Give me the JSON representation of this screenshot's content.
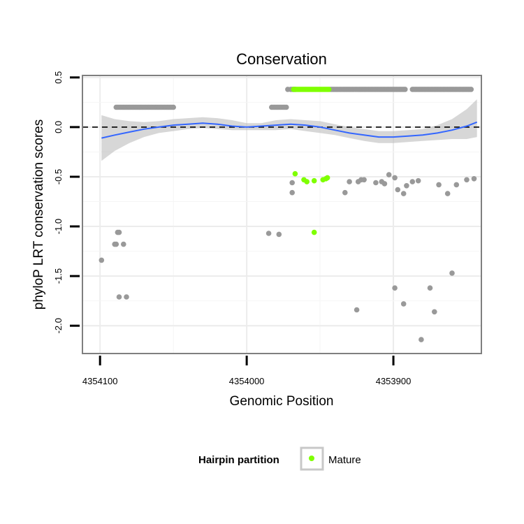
{
  "chart_data": {
    "type": "scatter",
    "title": "Conservation",
    "xlabel": "Genomic Position",
    "ylabel": "phyloP LRT conservation scores",
    "x_reversed": true,
    "xlim": [
      4354112,
      4353840
    ],
    "ylim": [
      -2.28,
      0.52
    ],
    "x_ticks": [
      4354100,
      4354000,
      4353900
    ],
    "x_tick_labels": [
      "4354100",
      "4354000",
      "4353900"
    ],
    "y_ticks": [
      0.5,
      0.0,
      -0.5,
      -1.0,
      -1.5,
      -2.0
    ],
    "y_tick_labels": [
      "0.5",
      "0.0",
      "-0.5",
      "-1.0",
      "-1.5",
      "-2.0"
    ],
    "grid": true,
    "reference_line": {
      "y": 0.0,
      "style": "dashed",
      "color": "#000000"
    },
    "legend": {
      "title": "Hairpin partition",
      "position": "bottom",
      "entries": [
        {
          "label": "Mature",
          "color": "#7fff00"
        }
      ]
    },
    "colors": {
      "default": "#999999",
      "mature": "#7fff00",
      "smooth": "#3366ff",
      "ribbon": "#bdbdbd",
      "panel_border": "#7f7f7f",
      "grid": "#ececec"
    },
    "series": [
      {
        "name": "Other",
        "color": "#999999",
        "x": [
          4354089,
          4354088,
          4354087,
          4354086,
          4354085,
          4354084,
          4354083,
          4354082,
          4354081,
          4354080,
          4354079,
          4354078,
          4354077,
          4354076,
          4354075,
          4354074,
          4354073,
          4354072,
          4354071,
          4354070,
          4354069,
          4354068,
          4354067,
          4354066,
          4354065,
          4354064,
          4354063,
          4354062,
          4354061,
          4354060,
          4354059,
          4354058,
          4354057,
          4354056,
          4354055,
          4354054,
          4354053,
          4354052,
          4354051,
          4354050,
          4353983,
          4353982,
          4353981,
          4353980,
          4353979,
          4353978,
          4353977,
          4353976,
          4353975,
          4353974,
          4353973,
          4353972,
          4353970,
          4353969,
          4353968,
          4353967,
          4353943,
          4353942,
          4353941,
          4353940,
          4353939,
          4353938,
          4353937,
          4353936,
          4353935,
          4353934,
          4353933,
          4353932,
          4353931,
          4353930,
          4353929,
          4353928,
          4353927,
          4353926,
          4353925,
          4353924,
          4353923,
          4353922,
          4353921,
          4353920,
          4353919,
          4353918,
          4353917,
          4353916,
          4353915,
          4353914,
          4353913,
          4353912,
          4353911,
          4353910,
          4353909,
          4353908,
          4353907,
          4353906,
          4353905,
          4353904,
          4353903,
          4353902,
          4353901,
          4353900,
          4353899,
          4353898,
          4353897,
          4353896,
          4353895,
          4353894,
          4353893,
          4353892,
          4353887,
          4353886,
          4353885,
          4353884,
          4353883,
          4353882,
          4353881,
          4353880,
          4353879,
          4353878,
          4353877,
          4353876,
          4353875,
          4353874,
          4353873,
          4353872,
          4353871,
          4353870,
          4353869,
          4353868,
          4353867,
          4353866,
          4353865,
          4353864,
          4353863,
          4353862,
          4353861,
          4353860,
          4353859,
          4353858,
          4353857,
          4353856,
          4353855,
          4353854,
          4353853,
          4353852,
          4353851,
          4353850,
          4353849,
          4353848,
          4353847,
          4354099,
          4354089,
          4354088,
          4354087,
          4354084,
          4353985,
          4353978,
          4353969,
          4353969,
          4353933,
          4353930,
          4353924,
          4353922,
          4353920,
          4353912,
          4353908,
          4353906,
          4353903,
          4353899,
          4353897,
          4353893,
          4353891,
          4353887,
          4353883,
          4353869,
          4353863,
          4353857,
          4353850,
          4353845,
          4354090,
          4354082,
          4354087,
          4353925,
          4353899,
          4353893,
          4353881,
          4353875,
          4353872,
          4353860
        ],
        "y": [
          0.2,
          0.2,
          0.2,
          0.2,
          0.2,
          0.2,
          0.2,
          0.2,
          0.2,
          0.2,
          0.2,
          0.2,
          0.2,
          0.2,
          0.2,
          0.2,
          0.2,
          0.2,
          0.2,
          0.2,
          0.2,
          0.2,
          0.2,
          0.2,
          0.2,
          0.2,
          0.2,
          0.2,
          0.2,
          0.2,
          0.2,
          0.2,
          0.2,
          0.2,
          0.2,
          0.2,
          0.2,
          0.2,
          0.2,
          0.2,
          0.2,
          0.2,
          0.2,
          0.2,
          0.2,
          0.2,
          0.2,
          0.2,
          0.2,
          0.2,
          0.2,
          0.38,
          0.38,
          0.38,
          0.38,
          0.38,
          0.38,
          0.38,
          0.38,
          0.38,
          0.38,
          0.38,
          0.38,
          0.38,
          0.38,
          0.38,
          0.38,
          0.38,
          0.38,
          0.38,
          0.38,
          0.38,
          0.38,
          0.38,
          0.38,
          0.38,
          0.38,
          0.38,
          0.38,
          0.38,
          0.38,
          0.38,
          0.38,
          0.38,
          0.38,
          0.38,
          0.38,
          0.38,
          0.38,
          0.38,
          0.38,
          0.38,
          0.38,
          0.38,
          0.38,
          0.38,
          0.38,
          0.38,
          0.38,
          0.38,
          0.38,
          0.38,
          0.38,
          0.38,
          0.38,
          0.38,
          0.38,
          0.38,
          0.38,
          0.38,
          0.38,
          0.38,
          0.38,
          0.38,
          0.38,
          0.38,
          0.38,
          0.38,
          0.38,
          0.38,
          0.38,
          0.38,
          0.38,
          0.38,
          0.38,
          0.38,
          0.38,
          0.38,
          0.38,
          0.38,
          0.38,
          0.38,
          0.38,
          0.38,
          0.38,
          0.38,
          0.38,
          0.38,
          0.38,
          0.38,
          0.38,
          0.38,
          0.38,
          0.38,
          0.38,
          0.38,
          0.38,
          0.38,
          0.38,
          -1.34,
          -1.18,
          -1.06,
          -1.71,
          -1.18,
          -1.07,
          -1.08,
          -0.56,
          -0.66,
          -0.66,
          -0.55,
          -0.55,
          -0.53,
          -0.53,
          -0.56,
          -0.55,
          -0.57,
          -0.48,
          -0.51,
          -0.63,
          -0.67,
          -0.59,
          -0.55,
          -0.54,
          -0.58,
          -0.67,
          -0.58,
          -0.53,
          -0.52,
          -1.18,
          -1.71,
          -1.06,
          -1.84,
          -1.62,
          -1.78,
          -2.14,
          -1.62,
          -1.86,
          -1.47
        ]
      },
      {
        "name": "Mature",
        "color": "#7fff00",
        "x": [
          4353968,
          4353967,
          4353966,
          4353965,
          4353964,
          4353963,
          4353962,
          4353961,
          4353960,
          4353959,
          4353958,
          4353957,
          4353956,
          4353955,
          4353954,
          4353953,
          4353952,
          4353951,
          4353950,
          4353949,
          4353948,
          4353947,
          4353946,
          4353945,
          4353944,
          4353967,
          4353961,
          4353959,
          4353954,
          4353948,
          4353946,
          4353945,
          4353954
        ],
        "y": [
          0.38,
          0.38,
          0.38,
          0.38,
          0.38,
          0.38,
          0.38,
          0.38,
          0.38,
          0.38,
          0.38,
          0.38,
          0.38,
          0.38,
          0.38,
          0.38,
          0.38,
          0.38,
          0.38,
          0.38,
          0.38,
          0.38,
          0.38,
          0.38,
          0.38,
          -0.47,
          -0.53,
          -0.55,
          -0.54,
          -0.53,
          -0.52,
          -0.51,
          -1.06
        ]
      }
    ],
    "smooth": {
      "name": "loess",
      "color": "#3366ff",
      "x": [
        4354099,
        4354090,
        4354080,
        4354070,
        4354060,
        4354050,
        4354040,
        4354030,
        4354020,
        4354010,
        4354000,
        4353990,
        4353980,
        4353970,
        4353960,
        4353950,
        4353940,
        4353930,
        4353920,
        4353910,
        4353900,
        4353890,
        4353880,
        4353870,
        4353860,
        4353850,
        4353843
      ],
      "y": [
        -0.11,
        -0.08,
        -0.05,
        -0.02,
        0.0,
        0.02,
        0.03,
        0.04,
        0.03,
        0.01,
        0.0,
        0.01,
        0.02,
        0.03,
        0.02,
        0.0,
        -0.03,
        -0.06,
        -0.08,
        -0.1,
        -0.1,
        -0.09,
        -0.08,
        -0.06,
        -0.03,
        0.01,
        0.05
      ],
      "ribbon_low": [
        -0.34,
        -0.24,
        -0.16,
        -0.1,
        -0.06,
        -0.04,
        -0.02,
        -0.01,
        -0.02,
        -0.03,
        -0.03,
        -0.03,
        -0.03,
        -0.02,
        -0.04,
        -0.06,
        -0.08,
        -0.11,
        -0.14,
        -0.16,
        -0.16,
        -0.15,
        -0.14,
        -0.13,
        -0.12,
        -0.12,
        -0.1
      ],
      "ribbon_high": [
        0.12,
        0.08,
        0.06,
        0.05,
        0.06,
        0.08,
        0.09,
        0.1,
        0.09,
        0.07,
        0.04,
        0.04,
        0.07,
        0.08,
        0.07,
        0.06,
        0.03,
        0.0,
        -0.02,
        -0.04,
        -0.04,
        -0.03,
        -0.02,
        0.02,
        0.08,
        0.18,
        0.28
      ]
    }
  }
}
